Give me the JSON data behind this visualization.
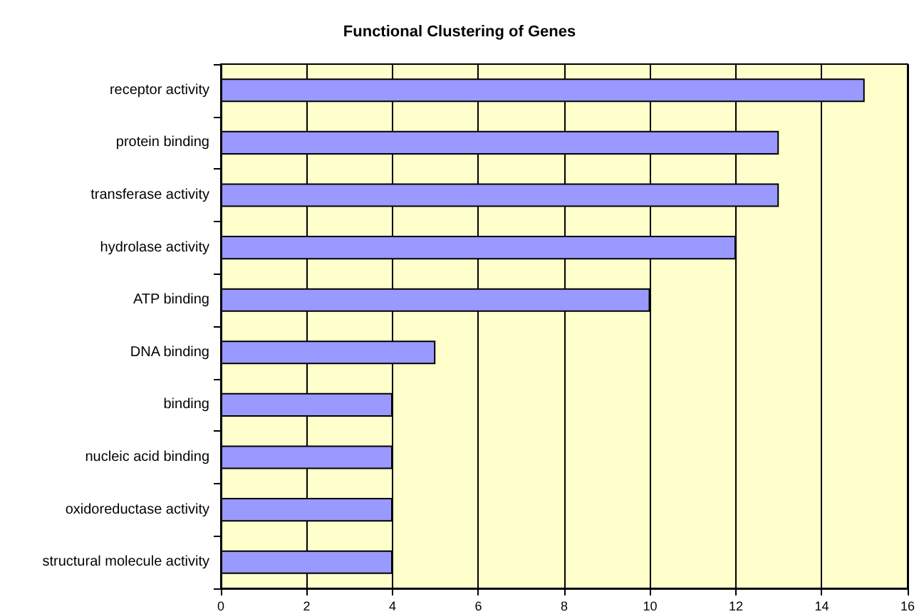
{
  "chart_data": {
    "type": "bar",
    "orientation": "horizontal",
    "title": "Functional Clustering of Genes",
    "categories": [
      "receptor activity",
      "protein binding",
      "transferase activity",
      "hydrolase activity",
      "ATP binding",
      "DNA binding",
      "binding",
      "nucleic acid binding",
      "oxidoreductase activity",
      "structural molecule activity"
    ],
    "values": [
      15,
      13,
      13,
      12,
      10,
      5,
      4,
      4,
      4,
      4
    ],
    "color": "#9999ff",
    "xlim": [
      0,
      16
    ],
    "xticks": [
      0,
      2,
      4,
      6,
      8,
      10,
      12,
      14,
      16
    ],
    "grid": "x"
  }
}
